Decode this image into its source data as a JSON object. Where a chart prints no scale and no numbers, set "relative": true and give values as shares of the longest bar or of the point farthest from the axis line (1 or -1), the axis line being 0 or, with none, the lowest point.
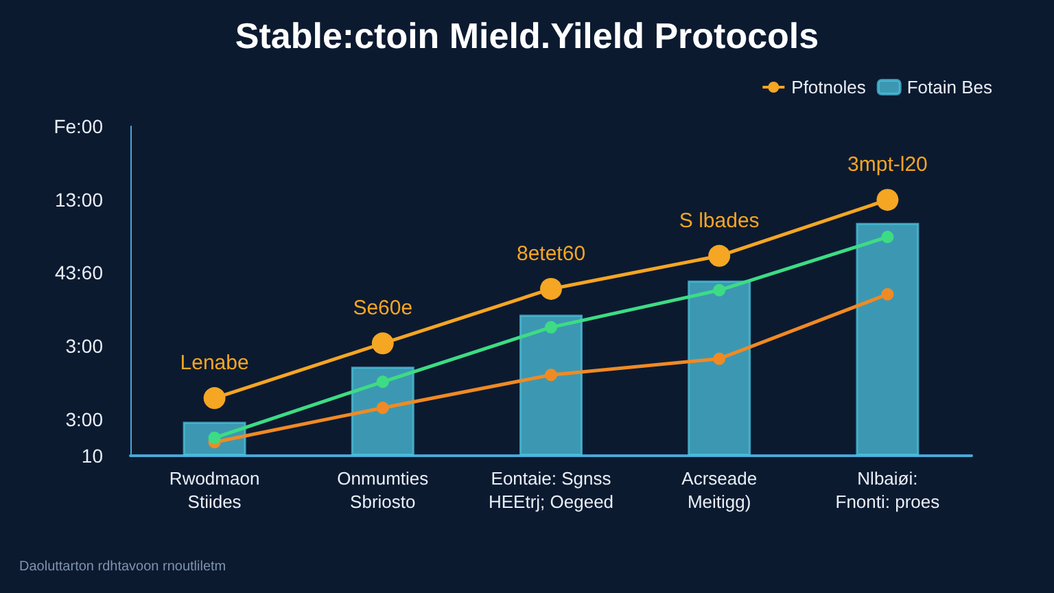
{
  "chart_data": {
    "type": "bar",
    "title": "Stable:ctoin Mield.Yileld Protocols",
    "relative": true,
    "categories": [
      "Rwodmaon\nStiides",
      "Onmumties\nSbriosto",
      "Eontaie: Sgnss\nHEEtrj; Oegeed",
      "Acrseade\nMeitigg)",
      "Nlbaiøi:\nFnonti: proes"
    ],
    "series": [
      {
        "name": "Fotain Bes",
        "color": "#4cc3de",
        "values": [
          0.133,
          0.348,
          0.551,
          0.685,
          0.91
        ]
      },
      {
        "name": "Pfotnoles",
        "type": "line",
        "color": "#f5a623",
        "marker": "circle",
        "values": [
          0.225,
          0.439,
          0.652,
          0.781,
          1
        ]
      },
      {
        "type": "line",
        "color": "#3ddc84",
        "marker": "circle",
        "values": [
          0.07,
          0.289,
          0.502,
          0.647,
          0.855
        ]
      },
      {
        "type": "line",
        "color": "#f08a24",
        "marker": "circle",
        "values": [
          0.053,
          0.187,
          0.316,
          0.379,
          0.631
        ]
      }
    ],
    "legend": "top right",
    "annotations": [
      "Daoluttarton rdhtavoon rnoutliletm",
      "10",
      "3:00",
      "3:00",
      "43:60",
      "13:00",
      "Fe:00",
      {
        "text": "Lenabe",
        "x": "Rwodmaon\nStiides",
        "y": 0.225
      },
      {
        "text": "Se60e",
        "x": "Onmumties\nSbriosto",
        "y": 0.439
      },
      {
        "text": "8etet60",
        "x": "Eontaie: Sgnss\nHEEtrj; Oegeed",
        "y": 0.652
      },
      {
        "text": "S lbades",
        "x": "Acrseade\nMeitigg)",
        "y": 0.781
      },
      {
        "text": "3mpt-l20",
        "x": "Nlbaiøi:\nFnonti: proes",
        "y": 1
      }
    ]
  }
}
